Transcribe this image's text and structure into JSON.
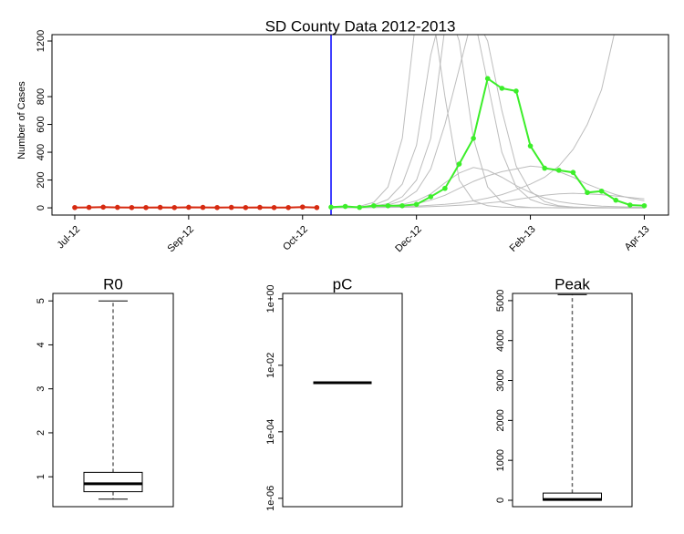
{
  "chart_data": [
    {
      "type": "line",
      "title": "SD County Data 2012-2013",
      "y_label": "Number of Cases",
      "x": [
        0,
        1,
        2,
        3,
        4,
        5,
        6,
        7,
        8,
        9,
        10,
        11,
        12,
        13,
        14,
        15,
        16,
        17,
        18,
        19,
        20,
        21,
        22,
        23,
        24,
        25,
        26,
        27,
        28,
        29,
        30,
        31,
        32,
        33,
        34,
        35,
        36,
        37,
        38,
        39,
        40
      ],
      "xlim": [
        -1.6,
        41.7
      ],
      "xticks": [
        {
          "value": 0,
          "label": "Jul-12"
        },
        {
          "value": 8,
          "label": "Sep-12"
        },
        {
          "value": 16,
          "label": "Oct-12"
        },
        {
          "value": 24,
          "label": "Dec-12"
        },
        {
          "value": 32,
          "label": "Feb-13"
        },
        {
          "value": 40,
          "label": "Apr-13"
        }
      ],
      "ylim": [
        -52,
        1246
      ],
      "yticks": [
        0,
        200,
        400,
        600,
        800,
        1200
      ],
      "forecast_start": 18,
      "forecast_color": "#0000ff",
      "simulation_color": "#bdbdbd",
      "simulations": [
        [
          null,
          null,
          null,
          null,
          null,
          null,
          null,
          null,
          null,
          null,
          null,
          null,
          null,
          null,
          null,
          null,
          null,
          null,
          0,
          2,
          5,
          12,
          30,
          80,
          200,
          500,
          1300,
          1500,
          1400,
          900,
          400,
          150,
          60,
          25,
          10,
          5,
          3,
          2,
          1,
          1,
          1
        ],
        [
          null,
          null,
          null,
          null,
          null,
          null,
          null,
          null,
          null,
          null,
          null,
          null,
          null,
          null,
          null,
          null,
          null,
          null,
          0,
          1,
          3,
          6,
          12,
          25,
          50,
          100,
          180,
          250,
          290,
          270,
          220,
          160,
          110,
          70,
          45,
          30,
          20,
          12,
          8,
          5,
          3
        ],
        [
          null,
          null,
          null,
          null,
          null,
          null,
          null,
          null,
          null,
          null,
          null,
          null,
          null,
          null,
          null,
          null,
          null,
          null,
          0,
          1,
          2,
          4,
          8,
          15,
          30,
          55,
          90,
          140,
          190,
          230,
          260,
          280,
          300,
          290,
          260,
          220,
          170,
          130,
          95,
          70,
          50
        ],
        [
          null,
          null,
          null,
          null,
          null,
          null,
          null,
          null,
          null,
          null,
          null,
          null,
          null,
          null,
          null,
          null,
          null,
          null,
          0,
          3,
          10,
          40,
          150,
          500,
          1400,
          1500,
          800,
          200,
          50,
          15,
          5,
          2,
          1,
          1,
          0,
          0,
          0,
          0,
          0,
          0,
          0
        ],
        [
          null,
          null,
          null,
          null,
          null,
          null,
          null,
          null,
          null,
          null,
          null,
          null,
          null,
          null,
          null,
          null,
          null,
          null,
          0,
          1,
          2,
          3,
          5,
          8,
          12,
          18,
          25,
          35,
          50,
          70,
          95,
          130,
          170,
          220,
          300,
          420,
          600,
          850,
          1300,
          1500,
          1500
        ],
        [
          null,
          null,
          null,
          null,
          null,
          null,
          null,
          null,
          null,
          null,
          null,
          null,
          null,
          null,
          null,
          null,
          null,
          null,
          0,
          2,
          6,
          20,
          60,
          170,
          450,
          1100,
          1500,
          1200,
          500,
          150,
          40,
          10,
          3,
          1,
          1,
          0,
          0,
          0,
          0,
          0,
          0
        ],
        [
          null,
          null,
          null,
          null,
          null,
          null,
          null,
          null,
          null,
          null,
          null,
          null,
          null,
          null,
          null,
          null,
          null,
          null,
          0,
          1,
          1,
          2,
          3,
          4,
          6,
          9,
          13,
          18,
          25,
          35,
          45,
          60,
          75,
          90,
          100,
          105,
          100,
          95,
          85,
          75,
          65
        ],
        [
          null,
          null,
          null,
          null,
          null,
          null,
          null,
          null,
          null,
          null,
          null,
          null,
          null,
          null,
          null,
          null,
          null,
          null,
          0,
          1,
          3,
          8,
          20,
          50,
          120,
          280,
          600,
          1000,
          1400,
          1200,
          700,
          300,
          120,
          45,
          15,
          5,
          2,
          1,
          0,
          0,
          0
        ]
      ],
      "series": [
        {
          "color": "#d62a10",
          "values": [
            2,
            3,
            5,
            3,
            2,
            2,
            3,
            2,
            4,
            3,
            2,
            3,
            2,
            3,
            2,
            2,
            6,
            2,
            null,
            null,
            null,
            null,
            null,
            null,
            null,
            null,
            null,
            null,
            null,
            null,
            null,
            null,
            null,
            null,
            null,
            null,
            null,
            null,
            null,
            null,
            null
          ]
        },
        {
          "color": "#3cee2a",
          "values": [
            null,
            null,
            null,
            null,
            null,
            null,
            null,
            null,
            null,
            null,
            null,
            null,
            null,
            null,
            null,
            null,
            null,
            null,
            5,
            10,
            3,
            15,
            15,
            15,
            25,
            80,
            140,
            315,
            500,
            930,
            860,
            840,
            445,
            285,
            270,
            255,
            110,
            120,
            55,
            20,
            15
          ]
        }
      ]
    },
    {
      "type": "box",
      "title": "R0",
      "ylim": [
        0.32,
        5.17
      ],
      "yticks": [
        1,
        2,
        3,
        4,
        5
      ],
      "whisker_low": 0.49,
      "q1": 0.66,
      "median": 0.84,
      "q3": 1.1,
      "whisker_high": 5.0
    },
    {
      "type": "box",
      "title": "pC",
      "log_scale": true,
      "ylim": [
        5.6e-07,
        1.45
      ],
      "yticks": [
        {
          "value": 1,
          "label": "1e+00"
        },
        {
          "value": 0.01,
          "label": "1e-02"
        },
        {
          "value": 0.0001,
          "label": "1e-04"
        },
        {
          "value": 1e-06,
          "label": "1e-06"
        }
      ],
      "whisker_low": 0.003,
      "q1": 0.003,
      "median": 0.003,
      "q3": 0.003,
      "whisker_high": 0.003
    },
    {
      "type": "box",
      "title": "Peak",
      "ylim": [
        -160,
        5180
      ],
      "yticks": [
        0,
        1000,
        2000,
        3000,
        4000,
        5000
      ],
      "whisker_low": 0,
      "q1": 0,
      "median": 20,
      "q3": 180,
      "whisker_high": 5150
    }
  ]
}
